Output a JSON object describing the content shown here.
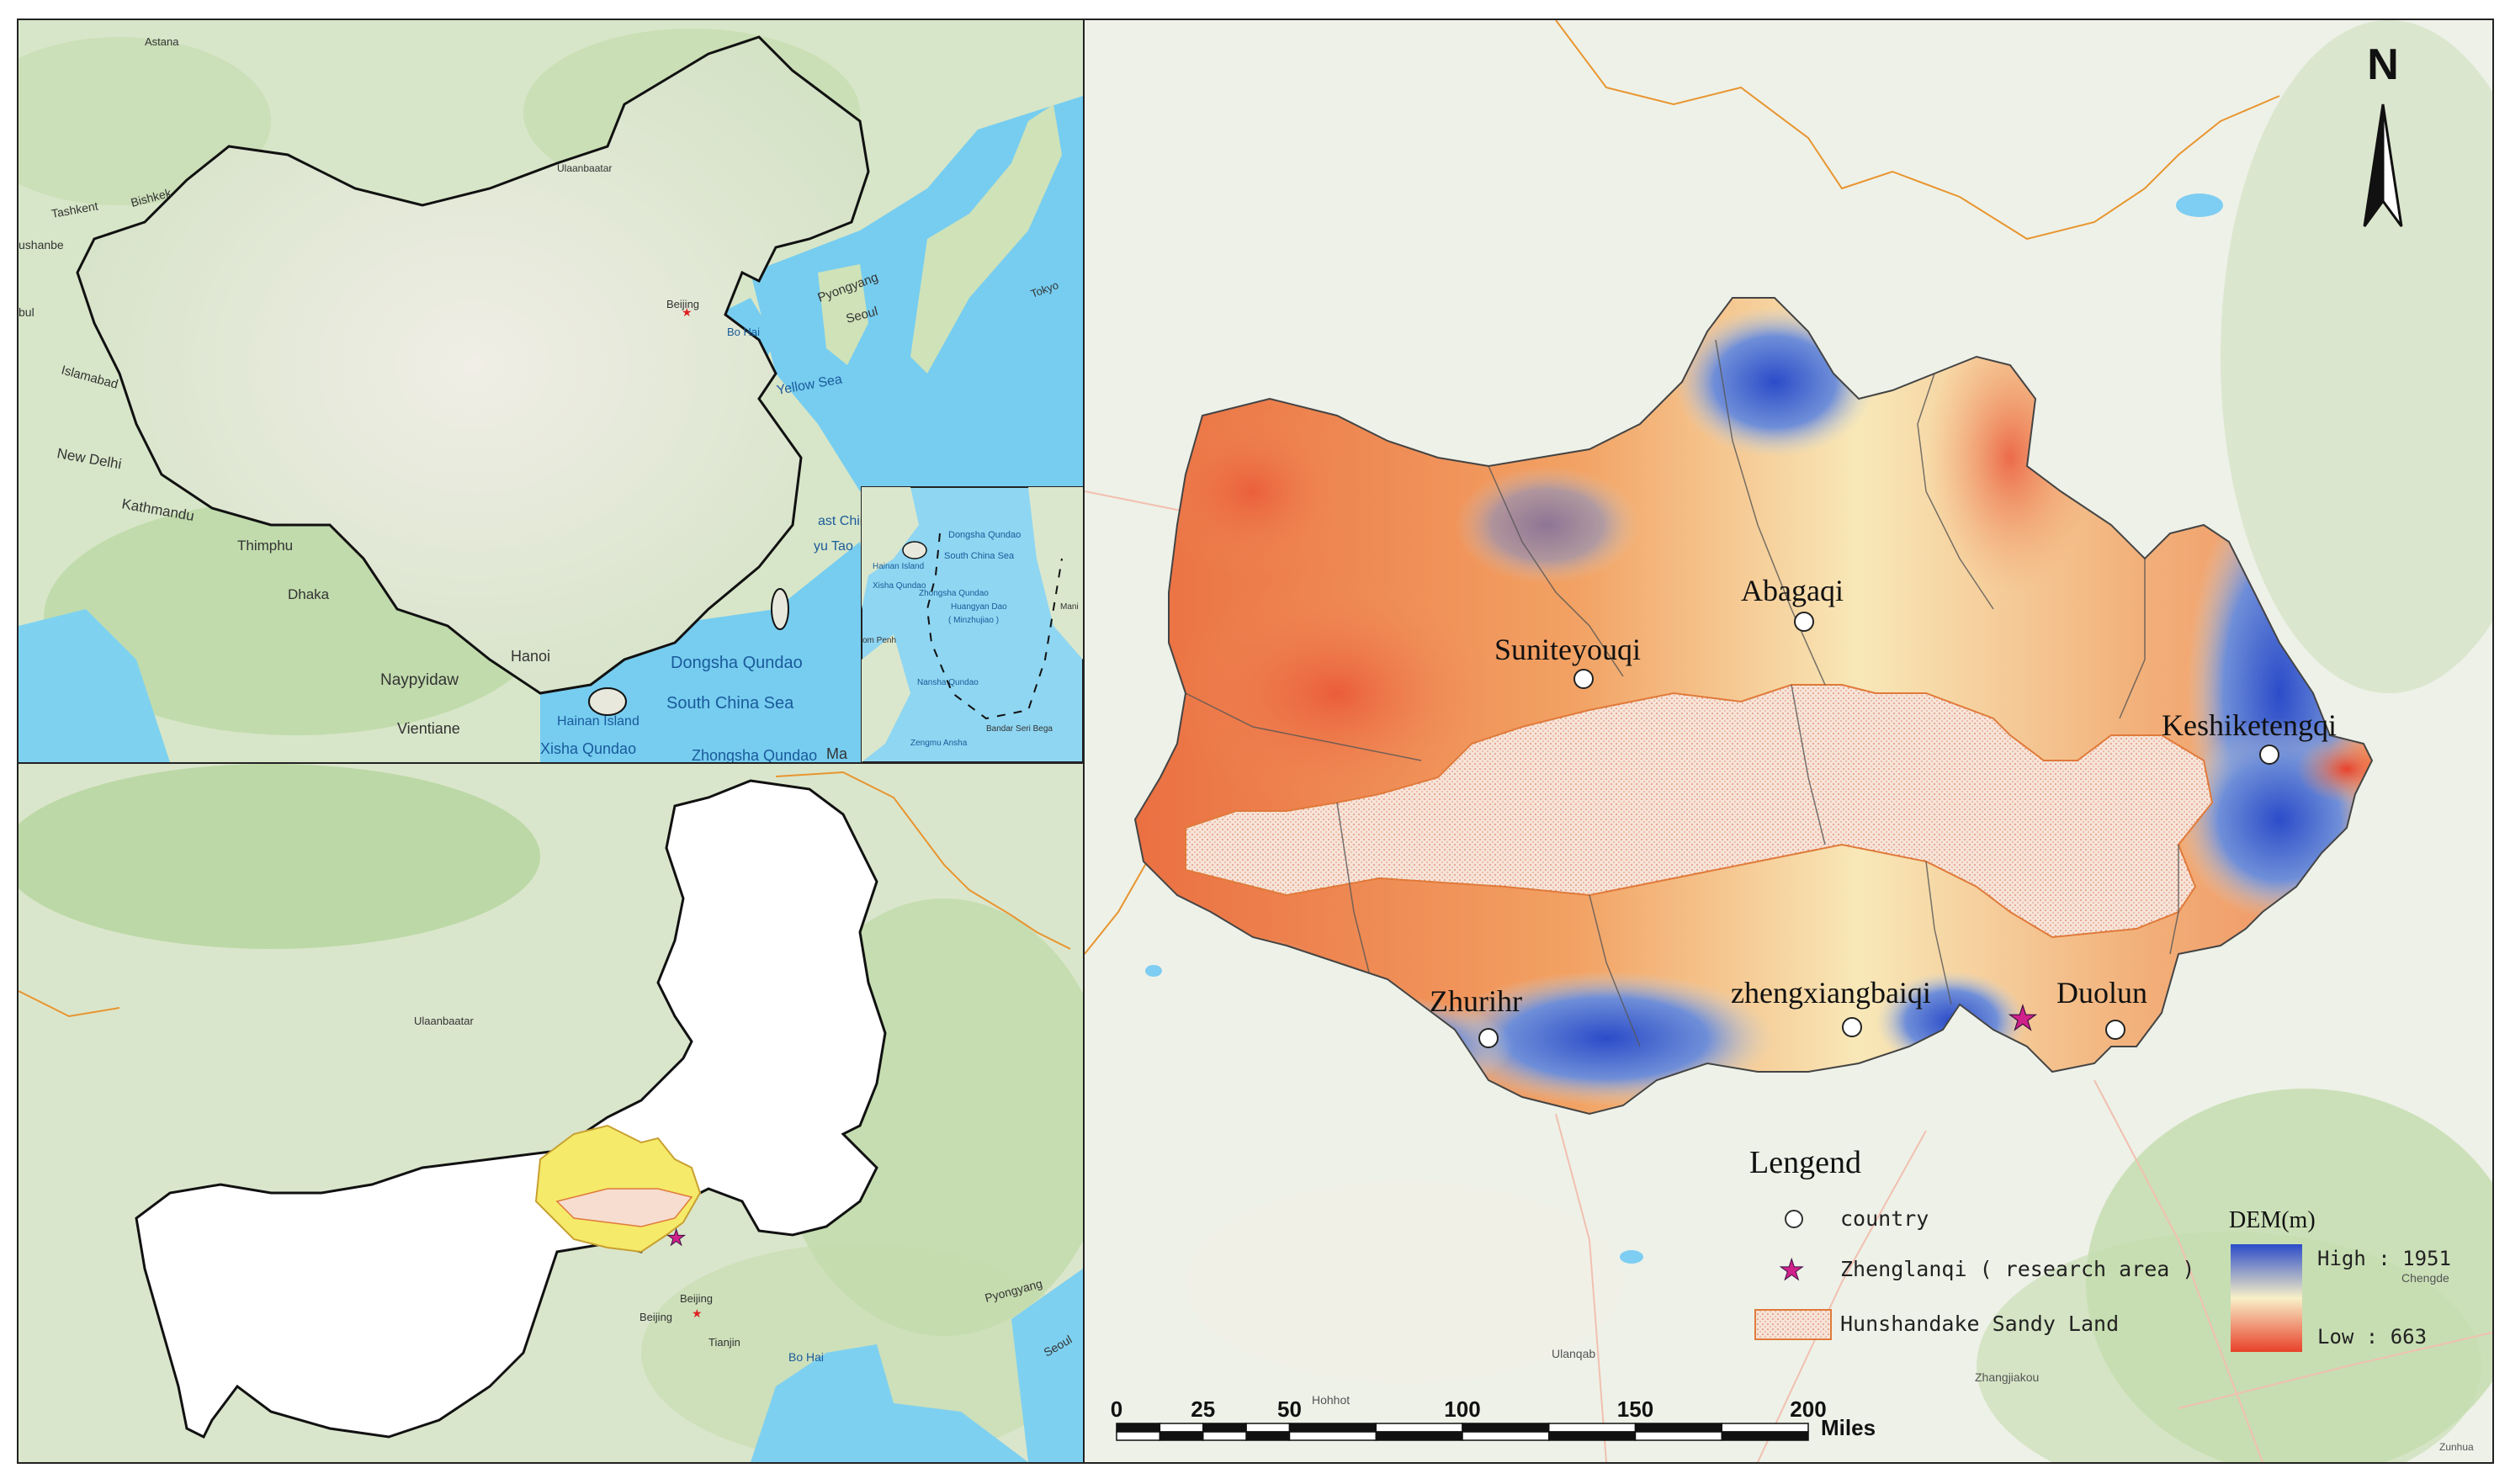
{
  "overview_map": {
    "places": {
      "astana": "Astana",
      "bishkek": "Bishkek",
      "tashkent": "Tashkent",
      "dushanbe": "ushanbe",
      "kabul": "bul",
      "islamabad": "Islamabad",
      "new_delhi": "New Delhi",
      "kathmandu": "Kathmandu",
      "thimphu": "Thimphu",
      "dhaka": "Dhaka",
      "naypyidaw": "Naypyidaw",
      "vientiane": "Vientiane",
      "hanoi": "Hanoi",
      "ulaanbaatar": "Ulaanbaatar",
      "beijing": "Beijing",
      "bo_hai": "Bo Hai",
      "pyongyang": "Pyongyang",
      "seoul": "Seoul",
      "tokyo": "Tokyo",
      "yellow_sea": "Yellow Sea",
      "east_china": "ast China",
      "yu_tao": "yu Tao",
      "dongsha": "Dongsha Qundao",
      "south_china_sea": "South China Sea",
      "hainan": "Hainan Island",
      "xisha": "Xisha Qundao",
      "zhongsha": "Zhongsha Qundao",
      "ma": "Ma"
    },
    "inset": {
      "dongsha": "Dongsha Qundao",
      "south_china_sea": "South China Sea",
      "hainan": "Hainan Island",
      "xisha": "Xisha Qundao",
      "zhongsha": "Zhongsha Qundao",
      "huangyan": "Huangyan Dao",
      "minzhujiao": "( Minzhujiao )",
      "phnom_penh": "om Penh",
      "nansha": "Nansha Qundao",
      "zengmu": "Zengmu Ansha",
      "bandar": "Bandar Seri Bega",
      "mani": "Mani"
    }
  },
  "region_map": {
    "places": {
      "ulaanbaatar": "Ulaanbaatar",
      "beijing1": "Beijing",
      "beijing2": "Beijing",
      "tianjin": "Tianjin",
      "bo_hai": "Bo Hai",
      "pyongyang": "Pyongyang",
      "seoul": "Seoul"
    }
  },
  "main_map": {
    "north": "N",
    "counties": {
      "abagaqi": "Abagaqi",
      "suniteyouqi": "Suniteyouqi",
      "keshiketengqi": "Keshiketengqi",
      "zhurihr": "Zhurihr",
      "zhengxiangbaiqi": "zhengxiangbaiqi",
      "duolun": "Duolun"
    },
    "background_labels": {
      "ulanqab": "Ulanqab",
      "hohhot": "Hohhot",
      "zhangjiakou": "Zhangjiakou",
      "chengde": "Chengde",
      "zunhua": "Zunhua"
    },
    "legend": {
      "title": "Lengend",
      "country": "country",
      "research_area": "Zhenglanqi ( research area )",
      "sandy_land": "Hunshandake Sandy Land",
      "dem_title": "DEM(m)",
      "high": "High : 1951",
      "low": "Low : 663",
      "high_color": "#2b4cc9",
      "low_color": "#e8412a"
    },
    "scale": {
      "ticks": [
        "0",
        "25",
        "50",
        "100",
        "150",
        "200"
      ],
      "unit": "Miles"
    }
  },
  "colors": {
    "sandy_fill": "#f6ddd0",
    "sandy_border": "#e07a3a",
    "star": "#d0208a",
    "water": "#7fd0f0",
    "land": "#dde7d0"
  }
}
